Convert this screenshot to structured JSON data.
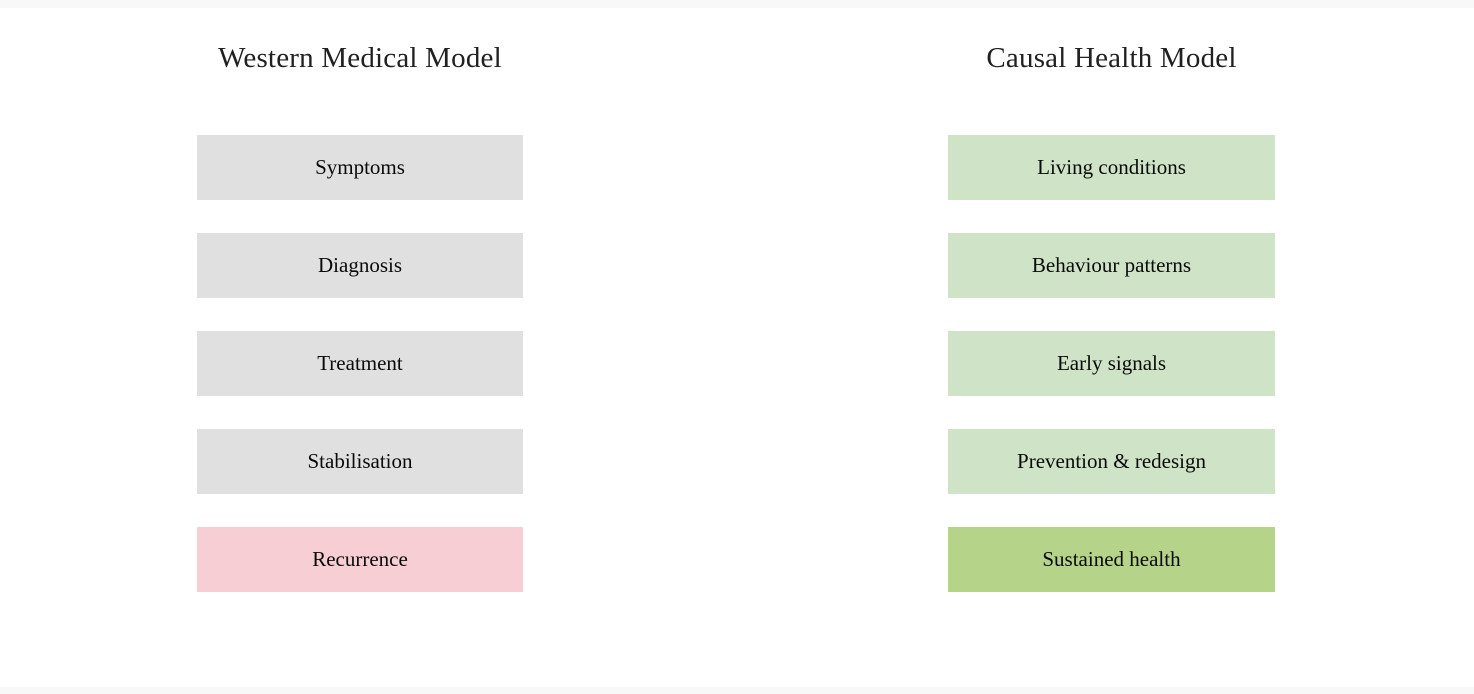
{
  "page": {
    "background": "#f8f8f8",
    "canvas_background": "#ffffff"
  },
  "columns": [
    {
      "title": "Western Medical Model",
      "boxes": [
        {
          "label": "Symptoms",
          "color": "#e0e0e0"
        },
        {
          "label": "Diagnosis",
          "color": "#e0e0e0"
        },
        {
          "label": "Treatment",
          "color": "#e0e0e0"
        },
        {
          "label": "Stabilisation",
          "color": "#e0e0e0"
        },
        {
          "label": "Recurrence",
          "color": "#f6ced3"
        }
      ]
    },
    {
      "title": "Causal Health Model",
      "boxes": [
        {
          "label": "Living conditions",
          "color": "#cfe3c7"
        },
        {
          "label": "Behaviour patterns",
          "color": "#cfe3c7"
        },
        {
          "label": "Early signals",
          "color": "#cfe3c7"
        },
        {
          "label": "Prevention & redesign",
          "color": "#cfe3c7"
        },
        {
          "label": "Sustained health",
          "color": "#b5d389"
        }
      ]
    }
  ]
}
